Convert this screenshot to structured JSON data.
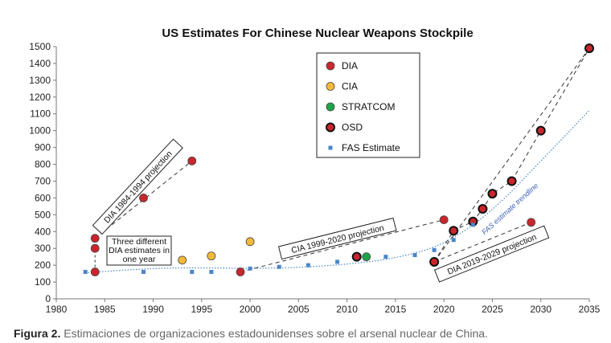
{
  "caption": {
    "label": "Figura 2.",
    "text": " Estimaciones de organizaciones estadounidenses sobre el arsenal nuclear de China."
  },
  "chart_data": {
    "type": "scatter",
    "title": "US Estimates For Chinese Nuclear Weapons Stockpile",
    "xlabel": "",
    "ylabel": "",
    "xlim": [
      1980,
      2035
    ],
    "ylim": [
      0,
      1500
    ],
    "x_ticks": [
      1980,
      1985,
      1990,
      1995,
      2000,
      2005,
      2010,
      2015,
      2020,
      2025,
      2030,
      2035
    ],
    "y_ticks": [
      0,
      100,
      200,
      300,
      400,
      500,
      600,
      700,
      800,
      900,
      1000,
      1100,
      1200,
      1300,
      1400,
      1500
    ],
    "grid": false,
    "legend_position": "top-center",
    "series": [
      {
        "name": "DIA",
        "marker": "circle",
        "color": "#c8262c",
        "points": [
          [
            1984,
            160
          ],
          [
            1984,
            300
          ],
          [
            1984,
            360
          ],
          [
            1989,
            600
          ],
          [
            1994,
            820
          ],
          [
            1999,
            160
          ],
          [
            2020,
            470
          ],
          [
            2029,
            455
          ]
        ]
      },
      {
        "name": "CIA",
        "marker": "circle",
        "color": "#f5b93a",
        "points": [
          [
            1993,
            230
          ],
          [
            1996,
            255
          ],
          [
            2000,
            340
          ]
        ]
      },
      {
        "name": "STRATCOM",
        "marker": "circle",
        "color": "#1fa34a",
        "points": [
          [
            2012,
            250
          ]
        ]
      },
      {
        "name": "OSD",
        "marker": "circle-thick",
        "color": "#c8262c",
        "points": [
          [
            2011,
            250
          ],
          [
            2019,
            220
          ],
          [
            2021,
            405
          ],
          [
            2023,
            460
          ],
          [
            2024,
            535
          ],
          [
            2025,
            625
          ],
          [
            2027,
            700
          ],
          [
            2030,
            1000
          ],
          [
            2035,
            1490
          ]
        ]
      },
      {
        "name": "FAS Estimate",
        "marker": "square",
        "color": "#4a86c8",
        "points": [
          [
            1983,
            160
          ],
          [
            1989,
            160
          ],
          [
            1994,
            160
          ],
          [
            1996,
            160
          ],
          [
            2000,
            180
          ],
          [
            2003,
            190
          ],
          [
            2006,
            200
          ],
          [
            2009,
            220
          ],
          [
            2014,
            250
          ],
          [
            2017,
            260
          ],
          [
            2019,
            290
          ],
          [
            2021,
            350
          ],
          [
            2023,
            440
          ]
        ]
      }
    ],
    "projections": [
      {
        "label": "DIA 1984-1994 projection",
        "from": [
          1984,
          360
        ],
        "to": [
          1994,
          820
        ]
      },
      {
        "label": "CIA 1999-2020 projection",
        "from": [
          1999,
          160
        ],
        "to": [
          2020,
          470
        ]
      },
      {
        "label": "DIA 2019-2029 projection",
        "from": [
          2019,
          220
        ],
        "to": [
          2029,
          455
        ]
      },
      {
        "label": "",
        "from": [
          2019,
          220
        ],
        "to": [
          2035,
          1490
        ]
      }
    ],
    "annotations": [
      {
        "lines": [
          "Three different",
          "DIA estimates in",
          "one year"
        ],
        "year": 1984,
        "values": [
          160,
          300,
          360
        ]
      }
    ],
    "trendline": {
      "label": "FAS estimate trendline",
      "points": [
        [
          1983,
          155
        ],
        [
          1990,
          182
        ],
        [
          1995,
          185
        ],
        [
          2000,
          180
        ],
        [
          2005,
          186
        ],
        [
          2010,
          205
        ],
        [
          2015,
          240
        ],
        [
          2020,
          320
        ],
        [
          2025,
          520
        ],
        [
          2030,
          820
        ],
        [
          2035,
          1120
        ]
      ]
    }
  }
}
